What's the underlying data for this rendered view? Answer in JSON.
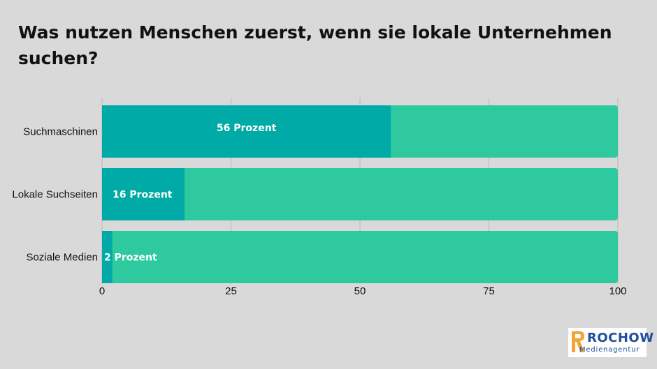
{
  "chart_data": {
    "type": "bar",
    "orientation": "horizontal",
    "stacked_to_total": true,
    "title": "Was nutzen Menschen zuerst, wenn sie lokale Unternehmen suchen?",
    "categories": [
      "Suchmaschinen",
      "Lokale Suchseiten",
      "Soziale Medien"
    ],
    "values": [
      56,
      16,
      2
    ],
    "total": 100,
    "data_labels": [
      "56 Prozent",
      "16 Prozent",
      "2 Prozent"
    ],
    "xlim": [
      0,
      100
    ],
    "xticks": [
      0,
      25,
      50,
      75,
      100
    ],
    "xtick_labels": [
      "0",
      "25",
      "50",
      "75",
      "100"
    ],
    "grid": true,
    "colors": {
      "value": "#00aaa6",
      "remainder": "#2ec99e",
      "grid": "#b8b8b8",
      "background": "#d9d9d9"
    }
  },
  "logo": {
    "word": "ROCHOW",
    "sub": "Medienagentur",
    "colors": {
      "blue": "#1f4f9c",
      "orange": "#f2a33a"
    }
  }
}
